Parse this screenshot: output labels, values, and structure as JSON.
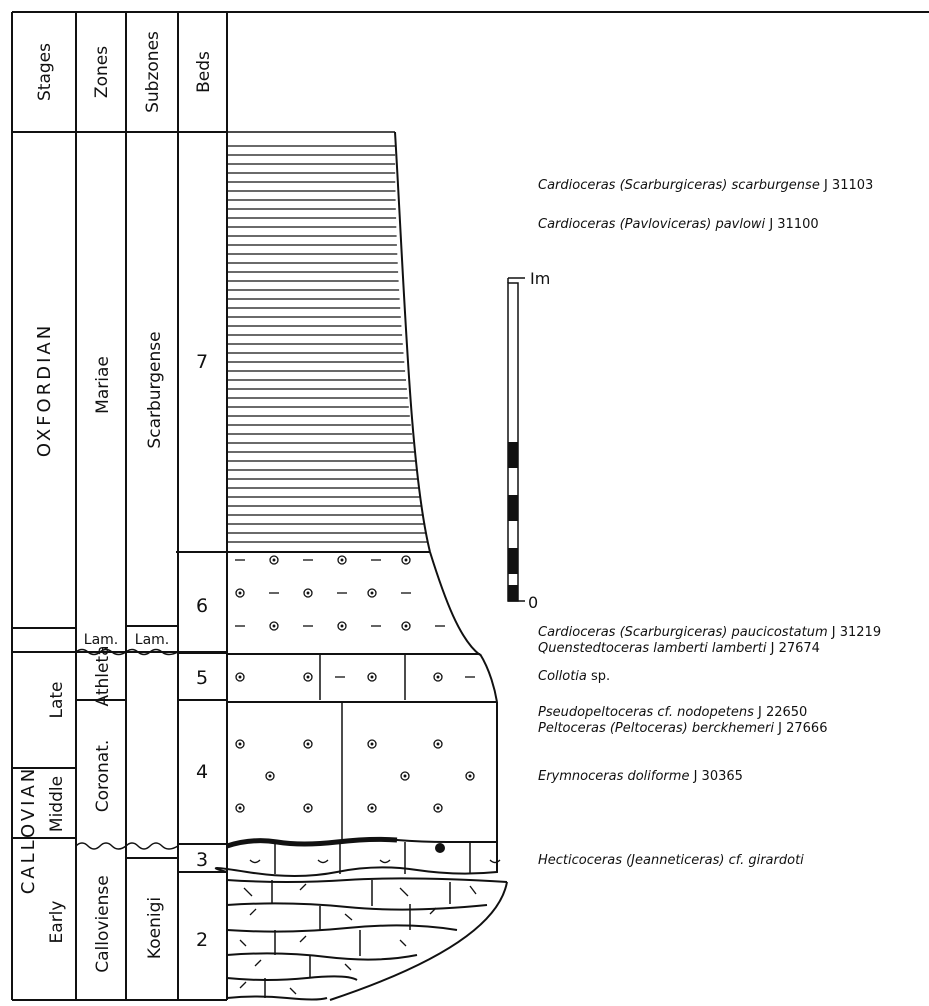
{
  "headers": {
    "stages": "Stages",
    "zones": "Zones",
    "subzones": "Subzones",
    "beds": "Beds"
  },
  "stages": {
    "oxfordian": "OXFORDIAN",
    "callovian": "CALLOVIAN"
  },
  "substages": {
    "late": "Late",
    "middle": "Middle",
    "early": "Early"
  },
  "zones": {
    "mariae": "Mariae",
    "lamberti": "Lam.",
    "athleta": "Athleta",
    "coronatum": "Coronat.",
    "calloviense": "Calloviense"
  },
  "subzones": {
    "scarburgense": "Scarburgense",
    "lamberti": "Lam.",
    "koenigi": "Koenigi"
  },
  "beds": [
    "7",
    "6",
    "5",
    "4",
    "3",
    "2"
  ],
  "scale": {
    "top_label": "Im",
    "bottom_label": "0"
  },
  "fossils": [
    {
      "name": "Cardioceras (Scarburgiceras) scarburgense",
      "code": "J 31103"
    },
    {
      "name": "Cardioceras (Pavloviceras) pavlowi",
      "code": "J 31100"
    },
    {
      "name": "Cardioceras (Scarburgiceras) paucicostatum",
      "code": "J 31219"
    },
    {
      "name": "Quenstedtoceras lamberti lamberti",
      "code": "J 27674"
    },
    {
      "name": "Collotia",
      "code": "sp."
    },
    {
      "name": "Pseudopeltoceras cf. nodopetens",
      "code": "J 22650"
    },
    {
      "name": "Peltoceras (Peltoceras) berckhemeri",
      "code": "J 27666"
    },
    {
      "name": "Erymnoceras doliforme",
      "code": "J 30365"
    },
    {
      "name": "Hecticoceras (Jeanneticeras) cf. girardoti",
      "code": ""
    }
  ]
}
